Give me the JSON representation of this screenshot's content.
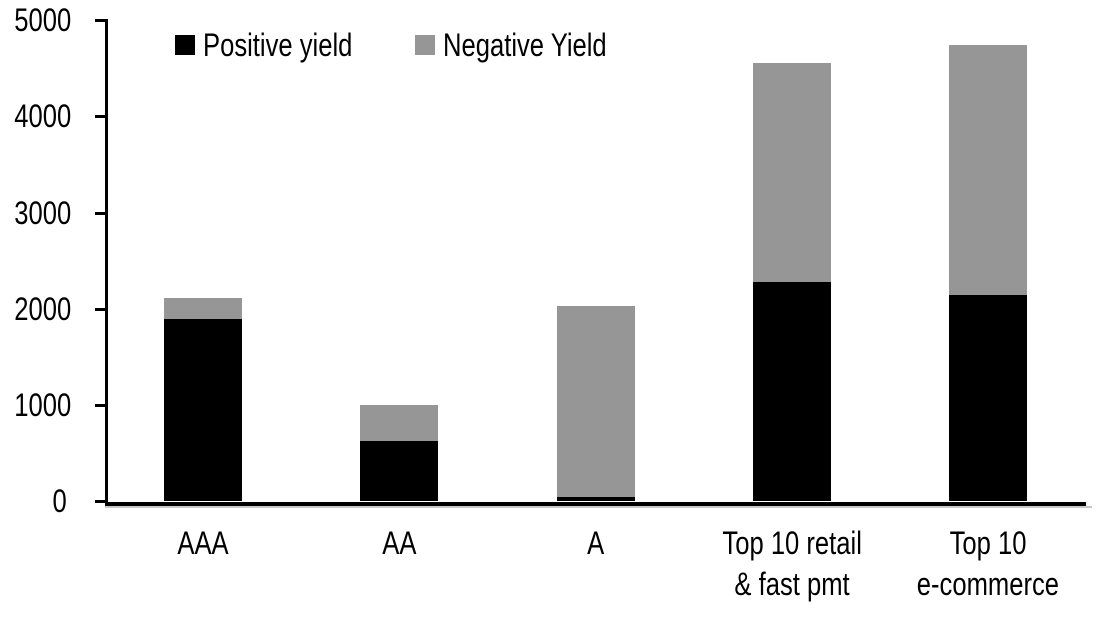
{
  "chart_data": {
    "type": "bar",
    "stacked": true,
    "title": "",
    "xlabel": "",
    "ylabel": "",
    "categories": [
      "AAA",
      "AA",
      "A",
      "Top 10 retail\n& fast pmt",
      "Top 10\ne-commerce"
    ],
    "series": [
      {
        "name": "Positive yield",
        "color": "#000000",
        "values": [
          1900,
          630,
          45,
          2280,
          2150
        ]
      },
      {
        "name": "Negative Yield",
        "color": "#969696",
        "values": [
          220,
          370,
          1985,
          2275,
          2600
        ]
      }
    ],
    "ylim": [
      0,
      5000
    ],
    "yticks": [
      0,
      1000,
      2000,
      3000,
      4000,
      5000
    ],
    "legend_position": "top",
    "grid": false
  },
  "colors": {
    "axis": "#000000",
    "background": "#ffffff",
    "baseline_shadow": "#c8c8c8"
  }
}
